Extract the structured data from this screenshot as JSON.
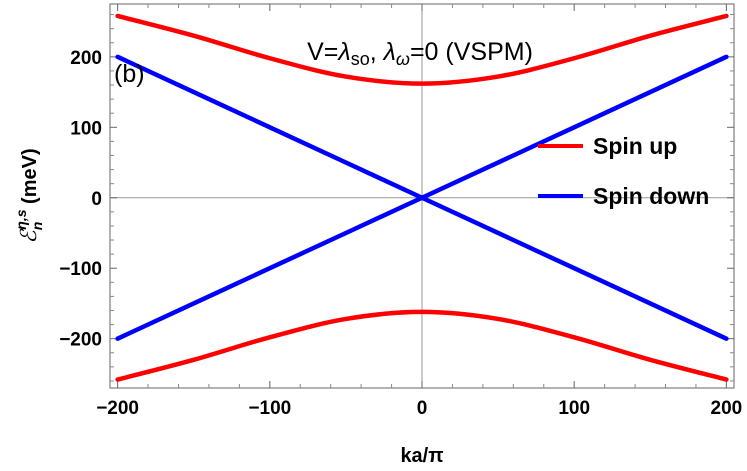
{
  "chart_data": {
    "type": "line",
    "title": "V=λso, λω=0 (VSPM)",
    "title_parts": {
      "prefix": "V=",
      "lambda1": "λ",
      "sub1": "so",
      "mid": ", ",
      "lambda2": "λ",
      "sub2": "ω",
      "suffix": "=0 (VSPM)"
    },
    "panel_label": "(b)",
    "xlabel": "ka/π",
    "ylabel": "ℰ n η,s (meV)",
    "ylabel_parts": {
      "symbol": "ℰ",
      "sub": "n",
      "sup": "η,s",
      "unit": " (meV)"
    },
    "xlim": [
      -205,
      205
    ],
    "ylim": [
      -270,
      275
    ],
    "x_ticks": [
      -200,
      -100,
      0,
      100,
      200
    ],
    "x_tick_labels": [
      "−200",
      "−100",
      "0",
      "100",
      "200"
    ],
    "y_ticks": [
      -200,
      -100,
      0,
      100,
      200
    ],
    "y_tick_labels": [
      "−200",
      "−100",
      "0",
      "100",
      "200"
    ],
    "grid": false,
    "zero_axes": true,
    "legend_position": "right",
    "legend": [
      {
        "label": "Spin up",
        "color": "#ff0000"
      },
      {
        "label": "Spin down",
        "color": "#0000ff"
      }
    ],
    "series": [
      {
        "name": "Spin up",
        "color": "#ff0000",
        "x": [
          -200,
          -150,
          -100,
          -50,
          0,
          50,
          100,
          150,
          200
        ],
        "y": [
          258,
          230,
          198,
          172,
          162,
          172,
          198,
          230,
          258
        ]
      },
      {
        "name": "Spin up",
        "color": "#ff0000",
        "x": [
          -200,
          -150,
          -100,
          -50,
          0,
          50,
          100,
          150,
          200
        ],
        "y": [
          -258,
          -230,
          -198,
          -172,
          -162,
          -172,
          -198,
          -230,
          -258
        ]
      },
      {
        "name": "Spin down",
        "color": "#0000ff",
        "x": [
          -200,
          -100,
          0,
          100,
          200
        ],
        "y": [
          200,
          100,
          0,
          -100,
          -200
        ]
      },
      {
        "name": "Spin down",
        "color": "#0000ff",
        "x": [
          -200,
          -100,
          0,
          100,
          200
        ],
        "y": [
          -200,
          -100,
          0,
          100,
          200
        ]
      }
    ]
  }
}
